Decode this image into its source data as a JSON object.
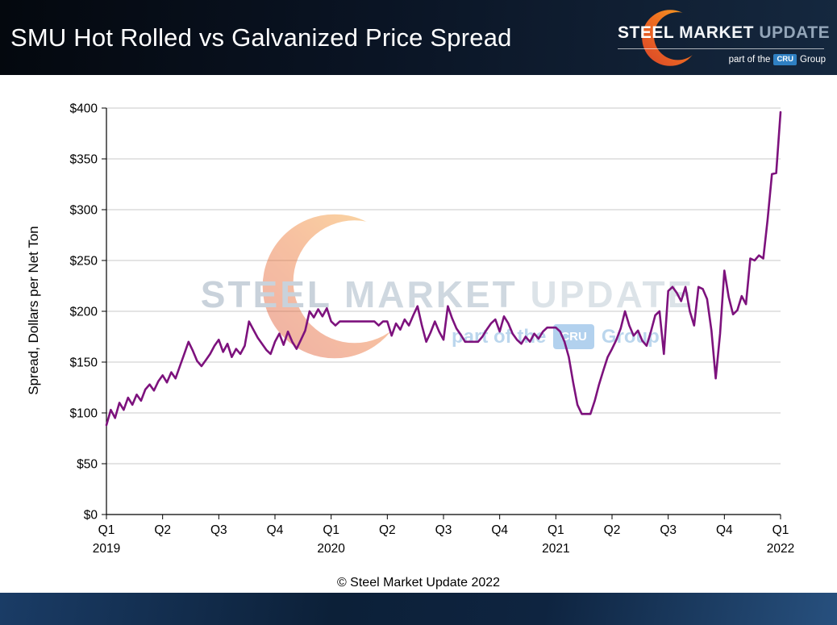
{
  "header": {
    "title": "SMU Hot Rolled vs Galvanized Price Spread",
    "logo": {
      "steel": "STEEL",
      "market": "MARKET",
      "update": "UPDATE",
      "part_of": "part of the",
      "cru": "CRU",
      "group": "Group"
    }
  },
  "watermark": {
    "steel": "STEEL",
    "market": "MARKET",
    "update": "UPDATE",
    "part_of": "part of the",
    "cru": "CRU",
    "group": "Group"
  },
  "footer": {
    "copyright": "© Steel Market Update 2022"
  },
  "chart_data": {
    "type": "line",
    "title": "SMU Hot Rolled vs Galvanized Price Spread",
    "xlabel": "",
    "ylabel": "Spread, Dollars per Net Ton",
    "ylim": [
      0,
      400
    ],
    "y_tick_step": 50,
    "y_tick_labels": [
      "$0",
      "$50",
      "$100",
      "$150",
      "$200",
      "$250",
      "$300",
      "$350",
      "$400"
    ],
    "x_ticks": [
      {
        "label": "Q1",
        "year": "2019"
      },
      {
        "label": "Q2",
        "year": ""
      },
      {
        "label": "Q3",
        "year": ""
      },
      {
        "label": "Q4",
        "year": ""
      },
      {
        "label": "Q1",
        "year": "2020"
      },
      {
        "label": "Q2",
        "year": ""
      },
      {
        "label": "Q3",
        "year": ""
      },
      {
        "label": "Q4",
        "year": ""
      },
      {
        "label": "Q1",
        "year": "2021"
      },
      {
        "label": "Q2",
        "year": ""
      },
      {
        "label": "Q3",
        "year": ""
      },
      {
        "label": "Q4",
        "year": ""
      },
      {
        "label": "Q1",
        "year": "2022"
      }
    ],
    "grid": true,
    "legend": false,
    "series": [
      {
        "name": "SMU Hot Rolled vs Galvanized Price Spread",
        "color": "#7d127d",
        "values": [
          88,
          103,
          95,
          110,
          103,
          115,
          108,
          118,
          112,
          123,
          128,
          122,
          131,
          137,
          130,
          140,
          134,
          146,
          158,
          170,
          161,
          151,
          146,
          152,
          158,
          166,
          172,
          160,
          168,
          155,
          163,
          158,
          166,
          190,
          182,
          174,
          168,
          162,
          158,
          170,
          178,
          167,
          180,
          170,
          163,
          172,
          181,
          200,
          194,
          202,
          195,
          203,
          190,
          186,
          190,
          190,
          190,
          190,
          190,
          190,
          190,
          190,
          190,
          186,
          190,
          190,
          176,
          188,
          182,
          192,
          186,
          196,
          205,
          186,
          170,
          179,
          190,
          180,
          172,
          205,
          193,
          183,
          177,
          170,
          170,
          170,
          170,
          175,
          182,
          188,
          192,
          180,
          195,
          188,
          178,
          172,
          168,
          175,
          170,
          178,
          173,
          180,
          184,
          184,
          184,
          180,
          170,
          155,
          130,
          108,
          99,
          99,
          99,
          112,
          128,
          142,
          155,
          163,
          172,
          183,
          200,
          186,
          176,
          181,
          171,
          166,
          180,
          196,
          200,
          158,
          220,
          224,
          218,
          210,
          224,
          200,
          186,
          224,
          222,
          212,
          181,
          134,
          178,
          240,
          214,
          197,
          201,
          215,
          207,
          252,
          250,
          255,
          252,
          290,
          335,
          336,
          396
        ]
      }
    ]
  }
}
